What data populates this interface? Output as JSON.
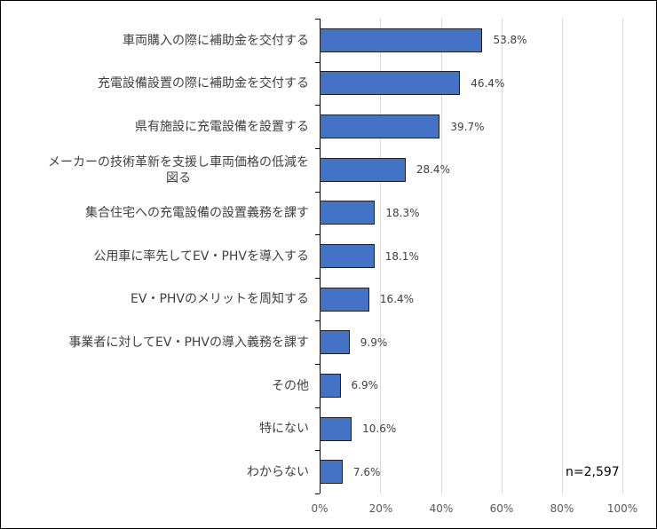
{
  "chart_data": {
    "type": "bar",
    "orientation": "horizontal",
    "title": "",
    "xlabel": "",
    "ylabel": "",
    "xlim": [
      0,
      100
    ],
    "grid": true,
    "legend": null,
    "categories": [
      "車両購入の際に補助金を交付する",
      "充電設備設置の際に補助金を交付する",
      "県有施設に充電設備を設置する",
      "メーカーの技術革新を支援し車両価格の低減を図る",
      "集合住宅への充電設備の設置義務を課す",
      "公用車に率先してEV・PHVを導入する",
      "EV・PHVのメリットを周知する",
      "事業者に対してEV・PHVの導入義務を課す",
      "その他",
      "特にない",
      "わからない"
    ],
    "values": [
      53.8,
      46.4,
      39.7,
      28.4,
      18.3,
      18.1,
      16.4,
      9.9,
      6.9,
      10.6,
      7.6
    ],
    "value_labels": [
      "53.8%",
      "46.4%",
      "39.7%",
      "28.4%",
      "18.3%",
      "18.1%",
      "16.4%",
      "9.9%",
      "6.9%",
      "10.6%",
      "7.6%"
    ],
    "x_ticks": [
      "0%",
      "20%",
      "40%",
      "60%",
      "80%",
      "100%"
    ],
    "annotation": "n=2,597",
    "bar_color": "#4472c4"
  },
  "labels": {
    "cat0": "車両購入の際に補助金を交付する",
    "cat1": "充電設備設置の際に補助金を交付する",
    "cat2": "県有施設に充電設備を設置する",
    "cat3_line1": "メーカーの技術革新を支援し車両価格の低減を",
    "cat3_line2": "図る",
    "cat4": "集合住宅への充電設備の設置義務を課す",
    "cat5": "公用車に率先してEV・PHVを導入する",
    "cat6": "EV・PHVのメリットを周知する",
    "cat7": "事業者に対してEV・PHVの導入義務を課す",
    "cat8": "その他",
    "cat9": "特にない",
    "cat10": "わからない"
  }
}
